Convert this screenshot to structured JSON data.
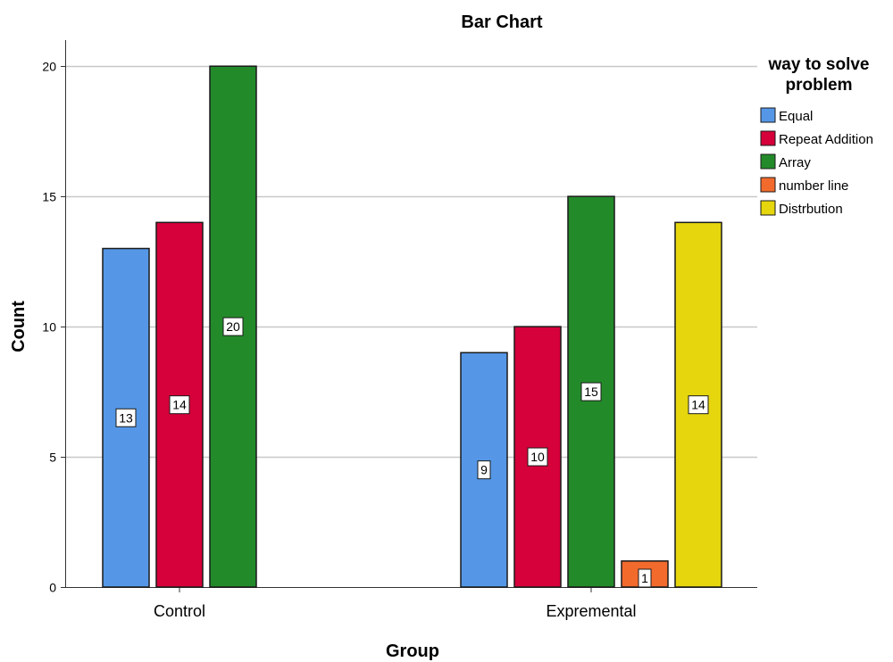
{
  "chart_data": {
    "type": "bar",
    "title": "Bar Chart",
    "xlabel": "Group",
    "ylabel": "Count",
    "categories": [
      "Control",
      "Expremental"
    ],
    "ylim": [
      0,
      21
    ],
    "yticks": [
      0,
      5,
      10,
      15,
      20
    ],
    "grid": true,
    "legend_title_lines": [
      "way to solve",
      "problem"
    ],
    "legend_position": "right",
    "series": [
      {
        "name": "Equal",
        "color": "#5597e6",
        "values": [
          13,
          9
        ]
      },
      {
        "name": "Repeat Addition",
        "color": "#d6003a",
        "values": [
          14,
          10
        ]
      },
      {
        "name": "Array",
        "color": "#238a2a",
        "values": [
          20,
          15
        ]
      },
      {
        "name": "number line",
        "color": "#f26b2d",
        "values": [
          null,
          1
        ]
      },
      {
        "name": "Distrbution",
        "color": "#e5d60e",
        "values": [
          null,
          14
        ]
      }
    ]
  }
}
